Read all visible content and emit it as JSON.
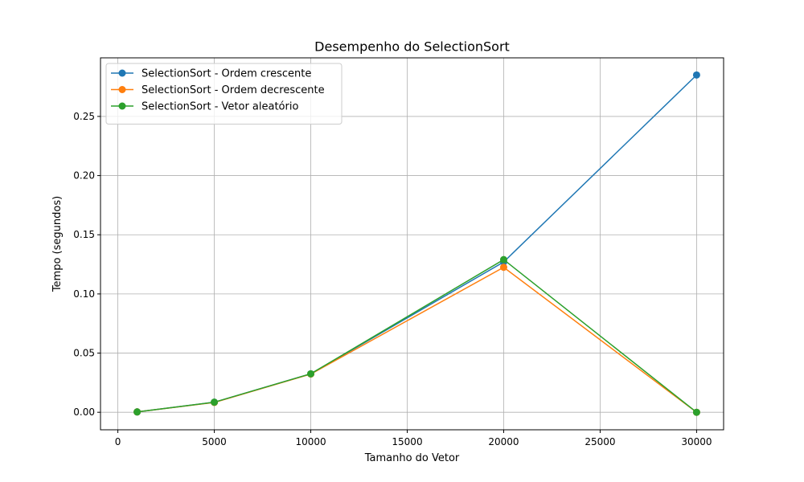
{
  "chart_data": {
    "type": "line",
    "title": "Desempenho do SelectionSort",
    "xlabel": "Tamanho do Vetor",
    "ylabel": "Tempo (segundos)",
    "x": [
      1000,
      5000,
      10000,
      20000,
      30000
    ],
    "xlim": [
      -900,
      31400
    ],
    "ylim": [
      -0.0148,
      0.2995
    ],
    "xticks": [
      0,
      5000,
      10000,
      15000,
      20000,
      25000,
      30000
    ],
    "xtick_labels": [
      "0",
      "5000",
      "10000",
      "15000",
      "20000",
      "25000",
      "30000"
    ],
    "yticks": [
      0,
      0.05,
      0.1,
      0.15,
      0.2,
      0.25
    ],
    "ytick_labels": [
      "0.00",
      "0.05",
      "0.10",
      "0.15",
      "0.20",
      "0.25"
    ],
    "grid": true,
    "legend_position": "top-left",
    "series": [
      {
        "name": "SelectionSort - Ordem crescente",
        "color": "#1f77b4",
        "values": [
          0.0003,
          0.0085,
          0.0325,
          0.127,
          0.285
        ]
      },
      {
        "name": "SelectionSort - Ordem decrescente",
        "color": "#ff7f0e",
        "values": [
          0.0003,
          0.0083,
          0.0323,
          0.1225,
          0.0
        ]
      },
      {
        "name": "SelectionSort - Vetor aleatório",
        "color": "#2ca02c",
        "values": [
          0.0003,
          0.0085,
          0.0325,
          0.129,
          0.0
        ]
      }
    ]
  }
}
